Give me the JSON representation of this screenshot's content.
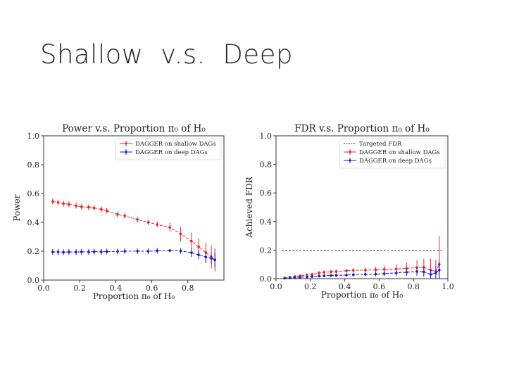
{
  "slide": {
    "title": "Shallow  v.s.  Deep"
  },
  "chart_data": [
    {
      "type": "line",
      "title": "Power v.s. Proportion π₀ of H₀",
      "xlabel": "Proportion π₀ of H₀",
      "ylabel": "Power",
      "xlim": [
        0.0,
        1.0
      ],
      "ylim": [
        0.0,
        1.0
      ],
      "xticks": [
        "0.0",
        "0.2",
        "0.4",
        "0.6",
        "0.8"
      ],
      "xtick_values": [
        0.0,
        0.2,
        0.4,
        0.6,
        0.8
      ],
      "yticks": [
        "0.0",
        "0.2",
        "0.4",
        "0.6",
        "0.8",
        "1.0"
      ],
      "ytick_values": [
        0.0,
        0.2,
        0.4,
        0.6,
        0.8,
        1.0
      ],
      "legend_position": "top-right",
      "grid": false,
      "series": [
        {
          "name": "DAGGER on shallow DAGs",
          "color": "#e8262b",
          "x": [
            0.05,
            0.08,
            0.11,
            0.14,
            0.18,
            0.21,
            0.25,
            0.28,
            0.32,
            0.35,
            0.41,
            0.45,
            0.52,
            0.58,
            0.63,
            0.7,
            0.76,
            0.82,
            0.86,
            0.9,
            0.93,
            0.95
          ],
          "y": [
            0.545,
            0.538,
            0.53,
            0.525,
            0.515,
            0.508,
            0.505,
            0.5,
            0.49,
            0.48,
            0.455,
            0.445,
            0.42,
            0.4,
            0.385,
            0.365,
            0.32,
            0.27,
            0.23,
            0.19,
            0.16,
            0.14
          ],
          "err": [
            0.02,
            0.02,
            0.02,
            0.02,
            0.02,
            0.02,
            0.02,
            0.02,
            0.02,
            0.02,
            0.02,
            0.02,
            0.02,
            0.02,
            0.02,
            0.03,
            0.05,
            0.06,
            0.06,
            0.07,
            0.08,
            0.08
          ]
        },
        {
          "name": "DAGGER on deep DAGs",
          "color": "#1a1ad0",
          "x": [
            0.05,
            0.08,
            0.11,
            0.14,
            0.18,
            0.21,
            0.25,
            0.28,
            0.32,
            0.35,
            0.41,
            0.45,
            0.52,
            0.58,
            0.63,
            0.7,
            0.76,
            0.82,
            0.86,
            0.9,
            0.93,
            0.95
          ],
          "y": [
            0.195,
            0.195,
            0.193,
            0.195,
            0.194,
            0.196,
            0.195,
            0.197,
            0.196,
            0.198,
            0.198,
            0.2,
            0.201,
            0.2,
            0.203,
            0.205,
            0.202,
            0.19,
            0.175,
            0.16,
            0.15,
            0.14
          ],
          "err": [
            0.02,
            0.02,
            0.02,
            0.02,
            0.02,
            0.02,
            0.02,
            0.02,
            0.02,
            0.02,
            0.02,
            0.02,
            0.02,
            0.02,
            0.02,
            0.01,
            0.02,
            0.03,
            0.03,
            0.04,
            0.04,
            0.05
          ]
        }
      ]
    },
    {
      "type": "line",
      "title": "FDR v.s. Proportion π₀ of H₀",
      "xlabel": "Proportion π₀ of H₀",
      "ylabel": "Achieved FDR",
      "xlim": [
        0.0,
        1.0
      ],
      "ylim": [
        0.0,
        1.0
      ],
      "xticks": [
        "0.0",
        "0.2",
        "0.4",
        "0.6",
        "0.8",
        "1.0"
      ],
      "xtick_values": [
        0.0,
        0.2,
        0.4,
        0.6,
        0.8,
        1.0
      ],
      "yticks": [
        "0.0",
        "0.2",
        "0.4",
        "0.6",
        "0.8",
        "1.0"
      ],
      "ytick_values": [
        0.0,
        0.2,
        0.4,
        0.6,
        0.8,
        1.0
      ],
      "legend_position": "top-right",
      "grid": false,
      "reference_line": {
        "name": "Targeted FDR",
        "y": 0.2,
        "color": "#333333"
      },
      "series": [
        {
          "name": "DAGGER on shallow DAGs",
          "color": "#e8262b",
          "x": [
            0.05,
            0.08,
            0.11,
            0.14,
            0.18,
            0.21,
            0.25,
            0.28,
            0.32,
            0.35,
            0.41,
            0.45,
            0.52,
            0.58,
            0.63,
            0.7,
            0.76,
            0.82,
            0.86,
            0.9,
            0.93,
            0.95
          ],
          "y": [
            0.005,
            0.01,
            0.015,
            0.02,
            0.025,
            0.03,
            0.04,
            0.045,
            0.048,
            0.05,
            0.055,
            0.058,
            0.06,
            0.062,
            0.065,
            0.068,
            0.072,
            0.078,
            0.08,
            0.06,
            0.05,
            0.1
          ],
          "err": [
            0.005,
            0.008,
            0.01,
            0.01,
            0.012,
            0.012,
            0.015,
            0.015,
            0.015,
            0.015,
            0.015,
            0.015,
            0.018,
            0.02,
            0.025,
            0.03,
            0.04,
            0.05,
            0.06,
            0.08,
            0.08,
            0.2
          ]
        },
        {
          "name": "DAGGER on deep DAGs",
          "color": "#1a1ad0",
          "x": [
            0.05,
            0.08,
            0.11,
            0.14,
            0.18,
            0.21,
            0.25,
            0.28,
            0.32,
            0.35,
            0.41,
            0.45,
            0.52,
            0.58,
            0.63,
            0.7,
            0.76,
            0.82,
            0.86,
            0.9,
            0.93,
            0.95
          ],
          "y": [
            0.003,
            0.005,
            0.008,
            0.01,
            0.012,
            0.015,
            0.018,
            0.02,
            0.022,
            0.023,
            0.025,
            0.028,
            0.03,
            0.032,
            0.035,
            0.04,
            0.045,
            0.05,
            0.048,
            0.03,
            0.04,
            0.06
          ],
          "err": [
            0.004,
            0.005,
            0.006,
            0.008,
            0.008,
            0.01,
            0.01,
            0.01,
            0.01,
            0.01,
            0.012,
            0.012,
            0.012,
            0.015,
            0.018,
            0.02,
            0.025,
            0.03,
            0.035,
            0.04,
            0.05,
            0.06
          ]
        }
      ]
    }
  ]
}
